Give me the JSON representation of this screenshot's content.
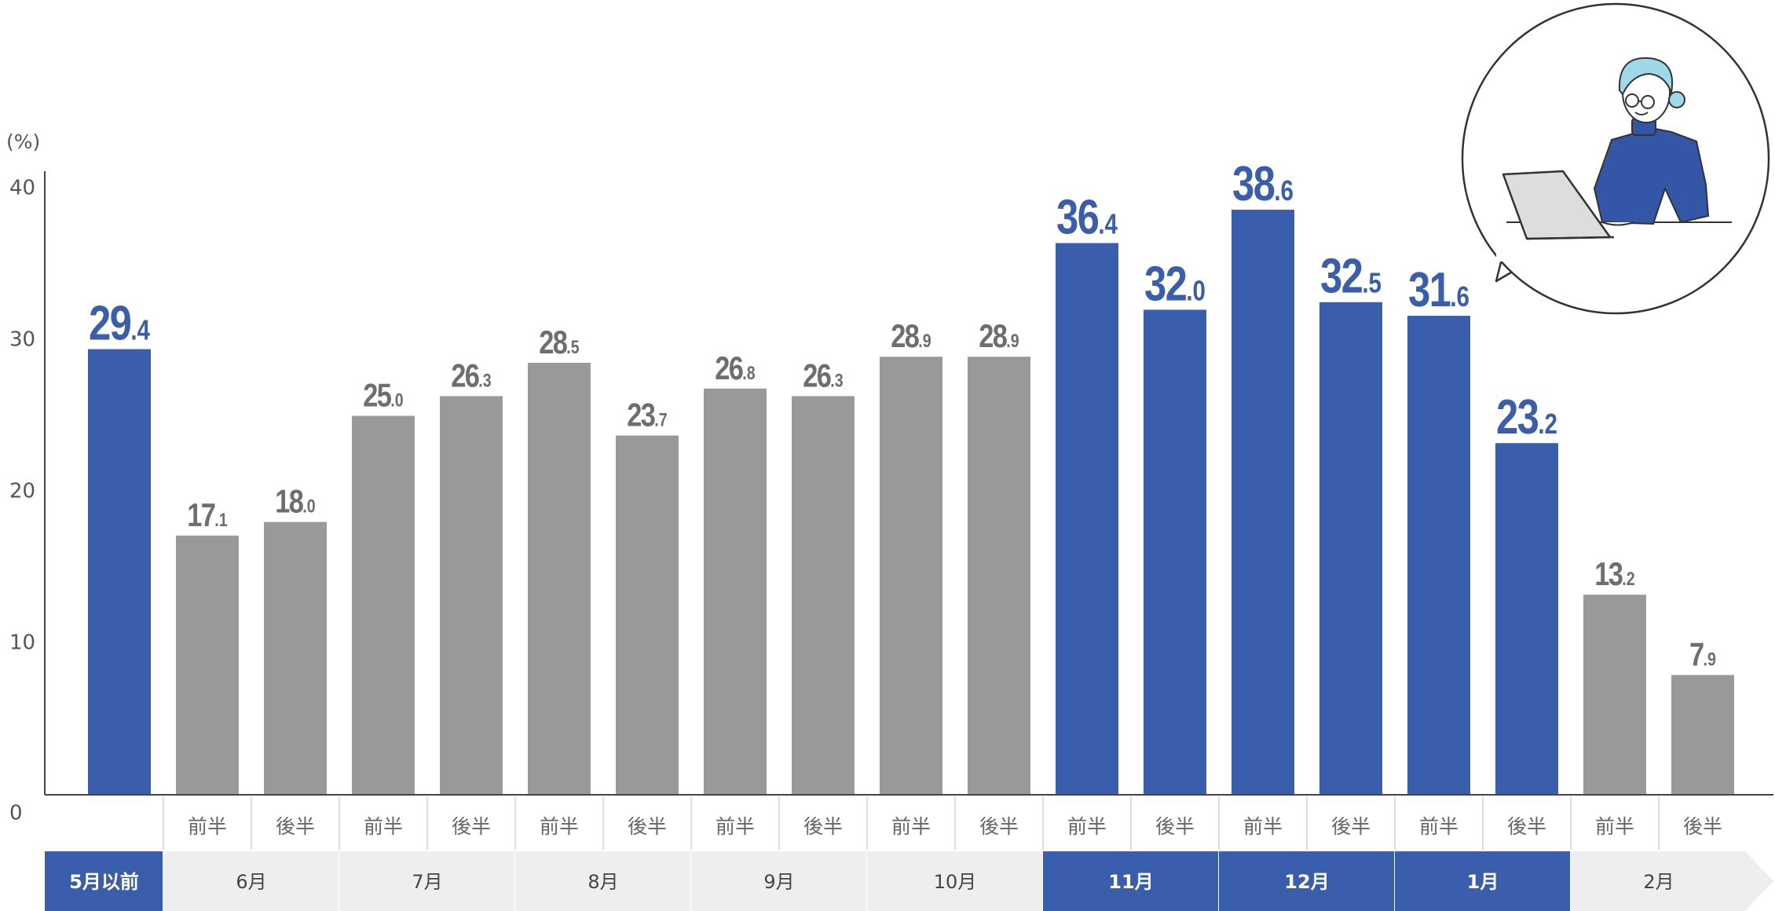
{
  "colors": {
    "highlight": "#3a5dac",
    "normal": "#999999",
    "label_gray": "#6e6e6e",
    "half_text": "#666666",
    "month_band_gray": "#eeeeee",
    "axis": "#444444",
    "illustration_outline": "#333333",
    "illustration_hair": "#9fd8e6",
    "illustration_sweater": "#3357a6",
    "illustration_laptop": "#dddddd"
  },
  "chart_data": {
    "type": "bar",
    "ylabel": "(%)",
    "ylim": [
      0,
      40
    ],
    "yticks": [
      "0",
      "10",
      "20",
      "30",
      "40"
    ],
    "grid": false,
    "half_labels": {
      "first": "前半",
      "second": "後半"
    },
    "bars": [
      {
        "month": "5月以前",
        "half": "",
        "value": 29.4,
        "int": "29",
        "dec": ".4",
        "highlight": true
      },
      {
        "month": "6月",
        "half": "前半",
        "value": 17.1,
        "int": "17",
        "dec": ".1",
        "highlight": false
      },
      {
        "month": "6月",
        "half": "後半",
        "value": 18.0,
        "int": "18",
        "dec": ".0",
        "highlight": false
      },
      {
        "month": "7月",
        "half": "前半",
        "value": 25.0,
        "int": "25",
        "dec": ".0",
        "highlight": false
      },
      {
        "month": "7月",
        "half": "後半",
        "value": 26.3,
        "int": "26",
        "dec": ".3",
        "highlight": false
      },
      {
        "month": "8月",
        "half": "前半",
        "value": 28.5,
        "int": "28",
        "dec": ".5",
        "highlight": false
      },
      {
        "month": "8月",
        "half": "後半",
        "value": 23.7,
        "int": "23",
        "dec": ".7",
        "highlight": false
      },
      {
        "month": "9月",
        "half": "前半",
        "value": 26.8,
        "int": "26",
        "dec": ".8",
        "highlight": false
      },
      {
        "month": "9月",
        "half": "後半",
        "value": 26.3,
        "int": "26",
        "dec": ".3",
        "highlight": false
      },
      {
        "month": "10月",
        "half": "前半",
        "value": 28.9,
        "int": "28",
        "dec": ".9",
        "highlight": false
      },
      {
        "month": "10月",
        "half": "後半",
        "value": 28.9,
        "int": "28",
        "dec": ".9",
        "highlight": false
      },
      {
        "month": "11月",
        "half": "前半",
        "value": 36.4,
        "int": "36",
        "dec": ".4",
        "highlight": true
      },
      {
        "month": "11月",
        "half": "後半",
        "value": 32.0,
        "int": "32",
        "dec": ".0",
        "highlight": true
      },
      {
        "month": "12月",
        "half": "前半",
        "value": 38.6,
        "int": "38",
        "dec": ".6",
        "highlight": true
      },
      {
        "month": "12月",
        "half": "後半",
        "value": 32.5,
        "int": "32",
        "dec": ".5",
        "highlight": true
      },
      {
        "month": "1月",
        "half": "前半",
        "value": 31.6,
        "int": "31",
        "dec": ".6",
        "highlight": true
      },
      {
        "month": "1月",
        "half": "後半",
        "value": 23.2,
        "int": "23",
        "dec": ".2",
        "highlight": true
      },
      {
        "month": "2月",
        "half": "前半",
        "value": 13.2,
        "int": "13",
        "dec": ".2",
        "highlight": false
      },
      {
        "month": "2月",
        "half": "後半",
        "value": 7.9,
        "int": "7",
        "dec": ".9",
        "highlight": false
      }
    ],
    "months": [
      {
        "label": "5月以前",
        "highlight": true,
        "span": 1
      },
      {
        "label": "6月",
        "highlight": false,
        "span": 2
      },
      {
        "label": "7月",
        "highlight": false,
        "span": 2
      },
      {
        "label": "8月",
        "highlight": false,
        "span": 2
      },
      {
        "label": "9月",
        "highlight": false,
        "span": 2
      },
      {
        "label": "10月",
        "highlight": false,
        "span": 2
      },
      {
        "label": "11月",
        "highlight": true,
        "span": 2
      },
      {
        "label": "12月",
        "highlight": true,
        "span": 2
      },
      {
        "label": "1月",
        "highlight": true,
        "span": 2
      },
      {
        "label": "2月",
        "highlight": false,
        "span": 2
      }
    ]
  },
  "illustration": {
    "icon": "person-with-laptop-icon"
  }
}
